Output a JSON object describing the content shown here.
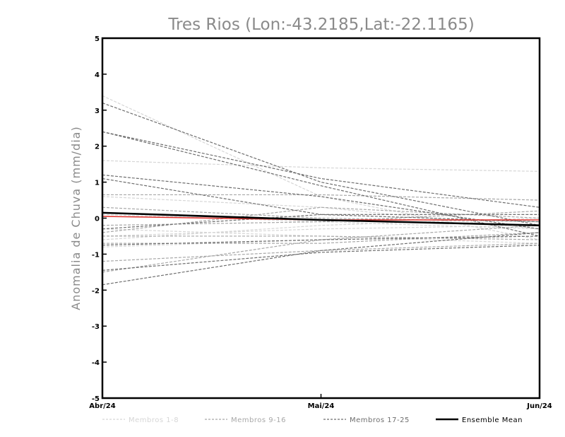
{
  "chart_data": {
    "type": "line",
    "title": "Tres Rios (Lon:-43.2185,Lat:-22.1165)",
    "ylabel": "Anomalia de Chuva (mm/dia)",
    "xlabel": "",
    "categories": [
      "Abr/24",
      "Mai/24",
      "Jun/24"
    ],
    "ylim": [
      -5,
      5
    ],
    "yticks": [
      "-5",
      "-4",
      "-3",
      "-2",
      "-1",
      "0",
      "1",
      "2",
      "3",
      "4",
      "5"
    ],
    "grid": false,
    "legend_position": "bottom",
    "legend": [
      {
        "label": "Membros 1-8",
        "color": "#d6d6d6",
        "style": "dashed"
      },
      {
        "label": "Membros 9-16",
        "color": "#a8a8a8",
        "style": "dashed"
      },
      {
        "label": "Membros 17-25",
        "color": "#6e6e6e",
        "style": "dashed"
      },
      {
        "label": "Ensemble Mean",
        "color": "#000000",
        "style": "solid"
      }
    ],
    "series": [
      {
        "group": 1,
        "values": [
          3.4,
          0.6,
          -0.6
        ]
      },
      {
        "group": 1,
        "values": [
          1.6,
          1.4,
          1.3
        ]
      },
      {
        "group": 1,
        "values": [
          -0.8,
          -0.6,
          -0.5
        ]
      },
      {
        "group": 1,
        "values": [
          -0.3,
          -0.5,
          -0.7
        ]
      },
      {
        "group": 1,
        "values": [
          0.1,
          -0.1,
          -0.3
        ]
      },
      {
        "group": 1,
        "values": [
          -0.6,
          -0.2,
          0.0
        ]
      },
      {
        "group": 1,
        "values": [
          0.6,
          0.3,
          -0.3
        ]
      },
      {
        "group": 1,
        "values": [
          -0.5,
          -0.3,
          -0.2
        ]
      },
      {
        "group": 2,
        "values": [
          0.65,
          0.65,
          0.5
        ]
      },
      {
        "group": 2,
        "values": [
          -0.4,
          0.3,
          0.0
        ]
      },
      {
        "group": 2,
        "values": [
          -1.5,
          -0.6,
          -0.2
        ]
      },
      {
        "group": 2,
        "values": [
          -0.7,
          -0.7,
          -0.4
        ]
      },
      {
        "group": 2,
        "values": [
          -0.2,
          -0.1,
          0.2
        ]
      },
      {
        "group": 2,
        "values": [
          -1.2,
          -0.9,
          -0.7
        ]
      },
      {
        "group": 2,
        "values": [
          0.3,
          0.0,
          -0.1
        ]
      },
      {
        "group": 2,
        "values": [
          -0.5,
          -0.5,
          -0.6
        ]
      },
      {
        "group": 3,
        "values": [
          3.2,
          1.0,
          -0.2
        ]
      },
      {
        "group": 3,
        "values": [
          2.4,
          0.9,
          -0.5
        ]
      },
      {
        "group": 3,
        "values": [
          2.4,
          1.1,
          0.3
        ]
      },
      {
        "group": 3,
        "values": [
          1.2,
          0.6,
          -0.3
        ]
      },
      {
        "group": 3,
        "values": [
          1.1,
          0.1,
          -0.1
        ]
      },
      {
        "group": 3,
        "values": [
          -1.85,
          -0.9,
          -0.4
        ]
      },
      {
        "group": 3,
        "values": [
          -0.75,
          -0.6,
          -0.5
        ]
      },
      {
        "group": 3,
        "values": [
          -0.3,
          0.1,
          0.1
        ]
      },
      {
        "group": 3,
        "values": [
          -1.45,
          -0.95,
          -0.75
        ]
      }
    ],
    "ensemble_mean": {
      "name": "Ensemble Mean",
      "values": [
        0.15,
        -0.05,
        -0.2
      ]
    },
    "reference_line": {
      "values": [
        0.05,
        -0.05,
        -0.05
      ],
      "color": "#e0302a"
    }
  }
}
